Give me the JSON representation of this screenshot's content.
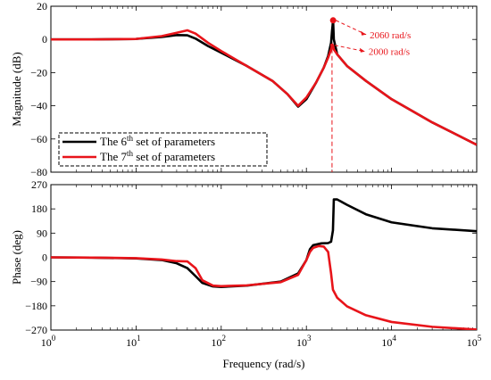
{
  "chart_data": [
    {
      "type": "line",
      "panel": "magnitude",
      "xscale": "log",
      "xlim": [
        1,
        100000
      ],
      "ylim": [
        -80,
        20
      ],
      "yticks": [
        20,
        0,
        -20,
        -40,
        -60,
        -80
      ],
      "ylabel": "Magnitude (dB)",
      "legend_placement": "bottom-left",
      "legend": [
        {
          "label_pre": "The 6",
          "label_sup": "th",
          "label_post": " set of parameters",
          "color": "#000000"
        },
        {
          "label_pre": "The 7",
          "label_sup": "th",
          "label_post": " set of parameters",
          "color": "#e8141a"
        }
      ],
      "series": [
        {
          "color": "#000000",
          "x": [
            1,
            3,
            10,
            20,
            30,
            40,
            50,
            70,
            100,
            200,
            400,
            600,
            800,
            1000,
            1300,
            1600,
            1800,
            1950,
            2000,
            2060,
            2100,
            2300,
            3000,
            5000,
            10000,
            30000,
            100000
          ],
          "y": [
            0,
            0,
            0.3,
            1.5,
            2.6,
            2.5,
            0.5,
            -4,
            -8,
            -16,
            -25,
            -33,
            -40.5,
            -36,
            -26,
            -17,
            -10,
            -2,
            5,
            11.5,
            0,
            -9,
            -16,
            -25,
            -36,
            -50,
            -63.5
          ]
        },
        {
          "color": "#e8141a",
          "x": [
            1,
            3,
            10,
            20,
            30,
            40,
            50,
            70,
            100,
            200,
            400,
            600,
            800,
            1000,
            1300,
            1600,
            1800,
            1950,
            2000,
            2060,
            2100,
            2300,
            3000,
            5000,
            10000,
            30000,
            100000
          ],
          "y": [
            0,
            0,
            0.3,
            2,
            4,
            5.5,
            3.5,
            -2,
            -7,
            -16,
            -25,
            -33,
            -40,
            -35,
            -26,
            -17,
            -11,
            -6,
            -3.5,
            -4,
            -6,
            -9,
            -16,
            -25,
            -36,
            -50,
            -63.5
          ]
        }
      ],
      "markers": [
        {
          "x": 2060,
          "y": 11.5,
          "color": "#e8141a"
        },
        {
          "x": 2000,
          "y": -3.5,
          "color": "#e8141a"
        }
      ],
      "annotations": [
        {
          "text": "2060 rad/s",
          "x": 2060,
          "y": 11.5
        },
        {
          "text": "2000 rad/s",
          "x": 2000,
          "y": -3.5
        }
      ],
      "vline": {
        "x": 2000,
        "color": "#e8141a",
        "style": "dashed"
      }
    },
    {
      "type": "line",
      "panel": "phase",
      "xscale": "log",
      "xlim": [
        1,
        100000
      ],
      "ylim": [
        -270,
        270
      ],
      "yticks": [
        270,
        180,
        90,
        0,
        -90,
        -180,
        -270
      ],
      "xticks": [
        1,
        10,
        100,
        1000,
        10000,
        100000
      ],
      "xtick_labels": [
        {
          "base": "10",
          "exp": "0"
        },
        {
          "base": "10",
          "exp": "1"
        },
        {
          "base": "10",
          "exp": "2"
        },
        {
          "base": "10",
          "exp": "3"
        },
        {
          "base": "10",
          "exp": "4"
        },
        {
          "base": "10",
          "exp": "5"
        }
      ],
      "xlabel": "Frequency  (rad/s)",
      "ylabel": "Phase (deg)",
      "series": [
        {
          "color": "#000000",
          "x": [
            1,
            3,
            10,
            20,
            30,
            40,
            50,
            60,
            80,
            100,
            200,
            500,
            800,
            1000,
            1100,
            1200,
            1500,
            1800,
            1950,
            2050,
            2100,
            2300,
            3000,
            5000,
            10000,
            30000,
            100000
          ],
          "y": [
            0,
            -1,
            -4,
            -10,
            -22,
            -40,
            -70,
            -95,
            -108,
            -110,
            -105,
            -90,
            -60,
            -10,
            30,
            45,
            52,
            53,
            58,
            100,
            215,
            215,
            195,
            160,
            130,
            108,
            97
          ]
        },
        {
          "color": "#e8141a",
          "x": [
            1,
            3,
            10,
            20,
            30,
            40,
            50,
            60,
            80,
            100,
            200,
            500,
            800,
            1000,
            1100,
            1200,
            1400,
            1600,
            1800,
            1950,
            2050,
            2300,
            3000,
            5000,
            10000,
            30000,
            100000
          ],
          "y": [
            0,
            -1,
            -3,
            -8,
            -14,
            -15,
            -40,
            -85,
            -105,
            -107,
            -104,
            -92,
            -65,
            -10,
            20,
            35,
            42,
            40,
            20,
            -60,
            -120,
            -150,
            -182,
            -215,
            -240,
            -258,
            -268
          ]
        }
      ]
    }
  ]
}
